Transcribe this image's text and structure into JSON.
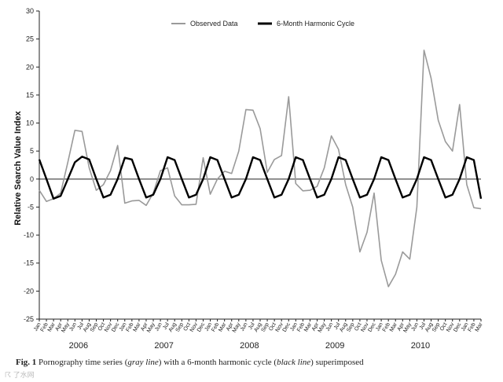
{
  "chart_data": {
    "type": "line",
    "ylabel": "Relative Search Value Index",
    "ylim": [
      -25,
      30
    ],
    "yticks": [
      -25,
      -20,
      -15,
      -10,
      -5,
      0,
      5,
      10,
      15,
      20,
      25,
      30
    ],
    "grid": false,
    "legend_position": "top-center",
    "x_month_labels": [
      "Jan",
      "Feb",
      "Mar",
      "Apr",
      "May",
      "Jun",
      "Jul",
      "Aug",
      "Sep",
      "Oct",
      "Nov",
      "Dec",
      "Jan",
      "Feb",
      "Mar",
      "Apr",
      "May",
      "Jun",
      "Jul",
      "Aug",
      "Sep",
      "Oct",
      "Nov",
      "Dec",
      "Jan",
      "Feb",
      "Mar",
      "Apr",
      "May",
      "Jun",
      "Jul",
      "Aug",
      "Sep",
      "Oct",
      "Nov",
      "Dec",
      "Jan",
      "Feb",
      "Mar",
      "Apr",
      "May",
      "Jun",
      "Jul",
      "Aug",
      "Sep",
      "Oct",
      "Nov",
      "Dec",
      "Jan",
      "Feb",
      "Mar",
      "Apr",
      "May",
      "Jun",
      "Jul",
      "Aug",
      "Sep",
      "Oct",
      "Nov",
      "Dec",
      "Jan",
      "Feb",
      "Mar"
    ],
    "x_year_labels": [
      "2006",
      "2007",
      "2008",
      "2009",
      "2010"
    ],
    "series": [
      {
        "name": "Observed Data",
        "color": "#9a9a9a",
        "values": [
          -2,
          -4,
          -3.5,
          -2.5,
          3,
          8.7,
          8.5,
          2,
          -2,
          -1,
          1.5,
          6,
          -4.3,
          -3.9,
          -3.8,
          -4.7,
          -2.5,
          1.5,
          2,
          -3,
          -4.6,
          -4.6,
          -4.5,
          3.8,
          -2.7,
          0,
          1.4,
          1,
          5,
          12.4,
          12.3,
          9,
          1.2,
          3.5,
          4.2,
          14.7,
          -0.8,
          -2.1,
          -2,
          -1.3,
          2,
          7.7,
          5.3,
          -1,
          -5,
          -13,
          -9.5,
          -2.5,
          -14.5,
          -19.2,
          -17,
          -13,
          -14.3,
          -5,
          23,
          18,
          10.5,
          6.7,
          5,
          13.3,
          -1,
          -5.1,
          -5.3
        ]
      },
      {
        "name": "6-Month Harmonic Cycle",
        "color": "#000000",
        "values": [
          3.5,
          0,
          -3.5,
          -3,
          0,
          3,
          4,
          3.5,
          0,
          -3.3,
          -2.8,
          0,
          3.8,
          3.5,
          0,
          -3.3,
          -2.8,
          0,
          3.9,
          3.4,
          0,
          -3.3,
          -2.8,
          0,
          3.9,
          3.4,
          0,
          -3.3,
          -2.8,
          0,
          3.9,
          3.4,
          0,
          -3.3,
          -2.8,
          0,
          3.9,
          3.4,
          0,
          -3.3,
          -2.8,
          0,
          3.9,
          3.4,
          0,
          -3.3,
          -2.8,
          0,
          3.9,
          3.4,
          0,
          -3.3,
          -2.8,
          0,
          3.9,
          3.4,
          0,
          -3.3,
          -2.8,
          0,
          3.9,
          3.4,
          -3.5
        ]
      }
    ]
  },
  "caption": {
    "fig_label": "Fig. 1",
    "text_1": "Pornography time series (",
    "gray_line": "gray line",
    "text_2": ") with a 6-month harmonic cycle (",
    "black_line": "black line",
    "text_3": ") superimposed"
  },
  "watermark": "☈ 了水网"
}
